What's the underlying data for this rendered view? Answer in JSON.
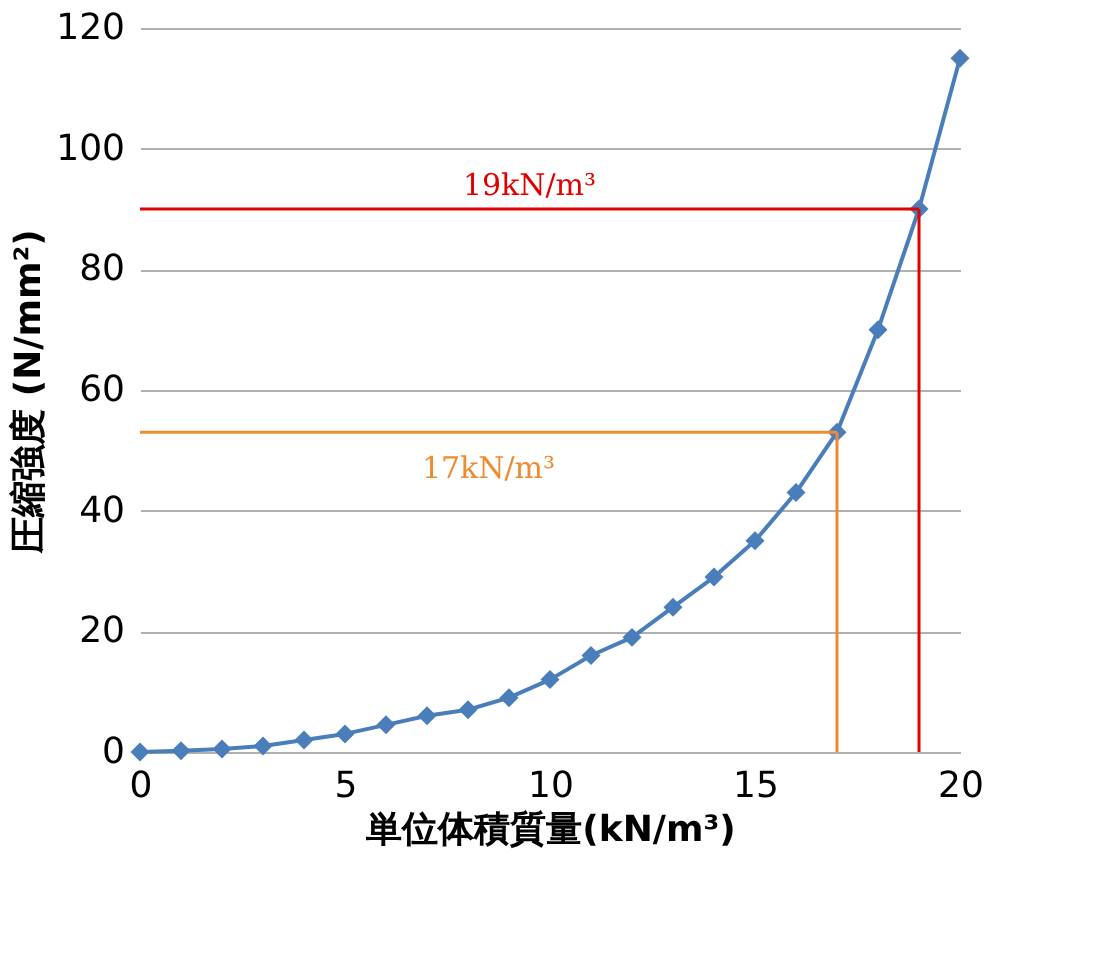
{
  "chart_data": {
    "type": "line",
    "xlabel": "単位体積質量(kN/m³)",
    "ylabel": "圧縮強度 (N/mm²)",
    "x": [
      0,
      1,
      2,
      3,
      4,
      5,
      6,
      7,
      8,
      9,
      10,
      11,
      12,
      13,
      14,
      15,
      16,
      17,
      18,
      19,
      20
    ],
    "series": [
      {
        "color": "#4a7ebb",
        "values": [
          0,
          0.2,
          0.5,
          1,
          2,
          3,
          4.5,
          6,
          7,
          9,
          12,
          16,
          19,
          24,
          29,
          35,
          43,
          53,
          70,
          90,
          115
        ]
      }
    ],
    "xlim": [
      0,
      20
    ],
    "xticks": [
      0,
      5,
      10,
      15,
      20
    ],
    "ylim": [
      0,
      120
    ],
    "yticks": [
      0,
      20,
      40,
      60,
      80,
      100,
      120
    ],
    "grid": "y",
    "marker": "diamond",
    "line_style": "solid",
    "ref_lines": [
      {
        "axis": "y",
        "value": 90,
        "label": "19kN/m³",
        "color": "#e00000"
      },
      {
        "axis": "x",
        "value": 19,
        "color": "#e00000"
      },
      {
        "axis": "y",
        "value": 53,
        "label": "17kN/m³",
        "color": "#f08a30"
      },
      {
        "axis": "x",
        "value": 17,
        "color": "#f08a30"
      }
    ]
  }
}
